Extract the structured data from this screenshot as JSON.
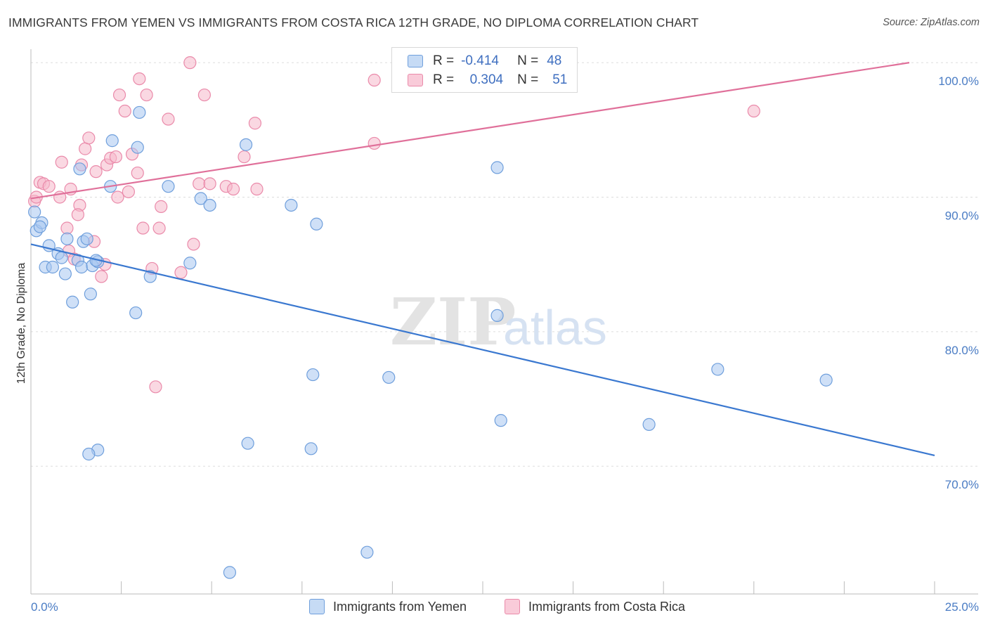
{
  "title": "IMMIGRANTS FROM YEMEN VS IMMIGRANTS FROM COSTA RICA 12TH GRADE, NO DIPLOMA CORRELATION CHART",
  "source": "Source: ZipAtlas.com",
  "watermark": {
    "zip": "ZIP",
    "atlas": "atlas"
  },
  "colors": {
    "yemen_fill": "#a8c6f0",
    "yemen_stroke": "#6f9fdc",
    "yemen_line": "#3a78d0",
    "costa_fill": "#f6b8cb",
    "costa_stroke": "#ea8aaa",
    "costa_line": "#e0709a",
    "tick_text": "#4a7cc4",
    "grid": "#dddddd"
  },
  "legend": {
    "rows": [
      {
        "r_label": "R =",
        "r_value": "-0.414",
        "n_label": "N =",
        "n_value": "48"
      },
      {
        "r_label": "R =",
        "r_value": "0.304",
        "n_label": "N =",
        "n_value": "51"
      }
    ]
  },
  "bottom_legend": [
    "Immigrants from Yemen",
    "Immigrants from Costa Rica"
  ],
  "chart_data": {
    "type": "scatter",
    "title": "IMMIGRANTS FROM YEMEN VS IMMIGRANTS FROM COSTA RICA 12TH GRADE, NO DIPLOMA CORRELATION CHART",
    "xlabel": "",
    "ylabel": "12th Grade, No Diploma",
    "xlim": [
      0,
      25
    ],
    "ylim": [
      60.5,
      101
    ],
    "x_tick_labels": [
      "0.0%",
      "25.0%"
    ],
    "y_ticks": [
      100,
      90,
      80,
      70
    ],
    "y_tick_labels": [
      "100.0%",
      "90.0%",
      "80.0%",
      "70.0%"
    ],
    "grid": true,
    "legend_position": "top-center",
    "series": [
      {
        "name": "Immigrants from Yemen",
        "r": -0.414,
        "n": 48,
        "trend": [
          [
            0,
            86.5
          ],
          [
            25,
            70.8
          ]
        ],
        "points": [
          [
            0.1,
            88.9
          ],
          [
            0.15,
            87.5
          ],
          [
            0.3,
            88.1
          ],
          [
            0.25,
            87.8
          ],
          [
            0.5,
            86.4
          ],
          [
            0.4,
            84.8
          ],
          [
            0.6,
            84.8
          ],
          [
            0.75,
            85.8
          ],
          [
            0.85,
            85.5
          ],
          [
            0.95,
            84.3
          ],
          [
            1.0,
            86.9
          ],
          [
            1.15,
            82.2
          ],
          [
            1.3,
            85.3
          ],
          [
            1.4,
            84.8
          ],
          [
            1.45,
            86.7
          ],
          [
            1.55,
            86.9
          ],
          [
            1.7,
            84.9
          ],
          [
            1.85,
            85.2
          ],
          [
            1.35,
            92.1
          ],
          [
            1.65,
            82.8
          ],
          [
            1.85,
            71.2
          ],
          [
            1.8,
            85.3
          ],
          [
            2.25,
            94.2
          ],
          [
            2.2,
            90.8
          ],
          [
            2.95,
            93.7
          ],
          [
            3.0,
            96.3
          ],
          [
            2.9,
            81.4
          ],
          [
            3.3,
            84.1
          ],
          [
            3.8,
            90.8
          ],
          [
            4.4,
            85.1
          ],
          [
            4.7,
            89.9
          ],
          [
            4.95,
            89.4
          ],
          [
            5.95,
            93.9
          ],
          [
            6.0,
            71.7
          ],
          [
            7.2,
            89.4
          ],
          [
            7.9,
            88.0
          ],
          [
            7.8,
            76.8
          ],
          [
            7.75,
            71.3
          ],
          [
            9.9,
            76.6
          ],
          [
            9.3,
            63.6
          ],
          [
            5.5,
            62.1
          ],
          [
            1.6,
            70.9
          ],
          [
            12.9,
            92.2
          ],
          [
            12.9,
            81.2
          ],
          [
            13.0,
            73.4
          ],
          [
            17.1,
            73.1
          ],
          [
            19.0,
            77.2
          ],
          [
            22.0,
            76.4
          ]
        ]
      },
      {
        "name": "Immigrants from Costa Rica",
        "r": 0.304,
        "n": 51,
        "trend": [
          [
            0,
            89.9
          ],
          [
            24.3,
            100.0
          ]
        ],
        "points": [
          [
            0.1,
            89.7
          ],
          [
            0.15,
            90.0
          ],
          [
            0.25,
            91.1
          ],
          [
            0.35,
            91.0
          ],
          [
            0.5,
            90.8
          ],
          [
            0.8,
            90.0
          ],
          [
            0.85,
            92.6
          ],
          [
            1.0,
            87.7
          ],
          [
            1.05,
            86.0
          ],
          [
            1.1,
            90.6
          ],
          [
            1.2,
            85.4
          ],
          [
            1.35,
            89.4
          ],
          [
            1.4,
            92.4
          ],
          [
            1.5,
            93.6
          ],
          [
            1.6,
            94.4
          ],
          [
            1.75,
            86.7
          ],
          [
            1.8,
            91.9
          ],
          [
            1.95,
            84.1
          ],
          [
            2.05,
            85.0
          ],
          [
            2.1,
            92.4
          ],
          [
            2.2,
            92.9
          ],
          [
            2.35,
            93.0
          ],
          [
            2.4,
            90.0
          ],
          [
            2.45,
            97.6
          ],
          [
            2.6,
            96.4
          ],
          [
            2.7,
            90.4
          ],
          [
            2.8,
            93.2
          ],
          [
            2.95,
            91.8
          ],
          [
            3.0,
            98.8
          ],
          [
            3.1,
            87.7
          ],
          [
            3.2,
            97.6
          ],
          [
            3.35,
            84.7
          ],
          [
            3.45,
            75.9
          ],
          [
            3.55,
            87.7
          ],
          [
            3.6,
            89.3
          ],
          [
            3.8,
            95.8
          ],
          [
            4.15,
            84.4
          ],
          [
            4.5,
            86.5
          ],
          [
            4.65,
            91.0
          ],
          [
            4.8,
            97.6
          ],
          [
            4.95,
            91.0
          ],
          [
            5.4,
            90.8
          ],
          [
            5.6,
            90.6
          ],
          [
            5.9,
            93.0
          ],
          [
            6.2,
            95.5
          ],
          [
            6.25,
            90.6
          ],
          [
            4.4,
            100.0
          ],
          [
            9.5,
            98.7
          ],
          [
            9.5,
            94.0
          ],
          [
            20.0,
            96.4
          ],
          [
            1.3,
            88.7
          ]
        ]
      }
    ]
  }
}
